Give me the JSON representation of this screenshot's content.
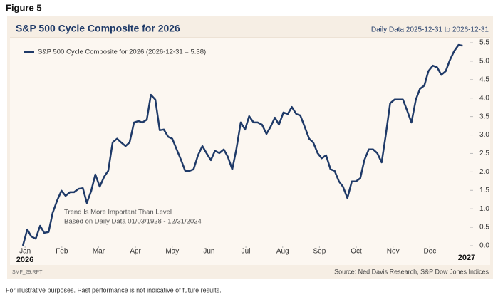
{
  "figure_label": "Figure 5",
  "chart_data": {
    "type": "line",
    "title": "S&P 500 Cycle Composite for 2026",
    "subtitle": "Daily Data 2025-12-31 to 2026-12-31",
    "annotations": [
      "Trend Is More Important Than Level",
      "Based on Daily Data 01/03/1928 - 12/31/2024"
    ],
    "year_start_label": "2026",
    "year_end_label": "2027",
    "report_id": "SMF_29.RPT",
    "source": "Source: Ned Davis Research, S&P Dow Jones Indices",
    "legend": "top-left",
    "grid": false,
    "xlim": [
      -0.1,
      12
    ],
    "xticks": [
      {
        "value": 0,
        "label": "Jan"
      },
      {
        "value": 1,
        "label": "Feb"
      },
      {
        "value": 2,
        "label": "Mar"
      },
      {
        "value": 3,
        "label": "Apr"
      },
      {
        "value": 4,
        "label": "May"
      },
      {
        "value": 5,
        "label": "Jun"
      },
      {
        "value": 6,
        "label": "Jul"
      },
      {
        "value": 7,
        "label": "Aug"
      },
      {
        "value": 8,
        "label": "Sep"
      },
      {
        "value": 9,
        "label": "Oct"
      },
      {
        "value": 10,
        "label": "Nov"
      },
      {
        "value": 11,
        "label": "Dec"
      }
    ],
    "ylim": [
      0,
      5.5
    ],
    "yticks": [
      {
        "value": 0,
        "label": "0.0"
      },
      0.5,
      {
        "value": 1,
        "label": "1.0"
      },
      1.5,
      {
        "value": 2,
        "label": "2.0"
      },
      2.5,
      {
        "value": 3,
        "label": "3.0"
      },
      3.5,
      {
        "value": 4,
        "label": "4.0"
      },
      4.5,
      {
        "value": 5,
        "label": "5.0"
      },
      5.5
    ],
    "x": [
      -0.06,
      0.06,
      0.17,
      0.29,
      0.41,
      0.52,
      0.64,
      0.75,
      0.87,
      0.99,
      1.1,
      1.22,
      1.33,
      1.45,
      1.57,
      1.68,
      1.8,
      1.91,
      2.03,
      2.15,
      2.26,
      2.38,
      2.5,
      2.61,
      2.73,
      2.84,
      2.96,
      3.08,
      3.19,
      3.31,
      3.42,
      3.54,
      3.66,
      3.77,
      3.89,
      4.0,
      4.12,
      4.24,
      4.35,
      4.47,
      4.58,
      4.7,
      4.82,
      4.93,
      5.05,
      5.16,
      5.28,
      5.4,
      5.51,
      5.63,
      5.74,
      5.86,
      5.98,
      6.09,
      6.21,
      6.32,
      6.44,
      6.56,
      6.67,
      6.79,
      6.9,
      7.02,
      7.14,
      7.25,
      7.37,
      7.48,
      7.6,
      7.72,
      7.83,
      7.95,
      8.06,
      8.18,
      8.3,
      8.41,
      8.53,
      8.64,
      8.76,
      8.88,
      8.99,
      9.11,
      9.22,
      9.34,
      9.46,
      9.57,
      9.69,
      9.8,
      9.92,
      10.04,
      10.15,
      10.27,
      10.38,
      10.5,
      10.62,
      10.73,
      10.85,
      10.96,
      11.08,
      11.2,
      11.31,
      11.43,
      11.54,
      11.66,
      11.78,
      11.89
    ],
    "series": [
      {
        "name": "S&P 500 Cycle Composite for 2026 (2026-12-31 = 5.38)",
        "color": "#1f3a68",
        "values": [
          0.0,
          0.44,
          0.25,
          0.19,
          0.54,
          0.35,
          0.37,
          0.89,
          1.22,
          1.49,
          1.35,
          1.45,
          1.45,
          1.54,
          1.56,
          1.16,
          1.49,
          1.93,
          1.6,
          1.87,
          2.03,
          2.8,
          2.9,
          2.8,
          2.7,
          2.8,
          3.34,
          3.38,
          3.34,
          3.42,
          4.09,
          3.96,
          3.13,
          3.15,
          2.95,
          2.9,
          2.61,
          2.32,
          2.03,
          2.03,
          2.07,
          2.45,
          2.7,
          2.51,
          2.32,
          2.57,
          2.51,
          2.61,
          2.41,
          2.07,
          2.61,
          3.34,
          3.15,
          3.51,
          3.34,
          3.34,
          3.28,
          3.03,
          3.22,
          3.47,
          3.28,
          3.61,
          3.57,
          3.76,
          3.57,
          3.53,
          3.22,
          2.9,
          2.8,
          2.51,
          2.37,
          2.45,
          2.07,
          2.03,
          1.74,
          1.6,
          1.29,
          1.74,
          1.74,
          1.83,
          2.32,
          2.61,
          2.61,
          2.51,
          2.26,
          2.99,
          3.86,
          3.96,
          3.96,
          3.96,
          3.67,
          3.34,
          3.96,
          4.25,
          4.34,
          4.73,
          4.88,
          4.83,
          4.63,
          4.73,
          5.02,
          5.27,
          5.44,
          5.42
        ]
      }
    ],
    "footnote": "For illustrative purposes. Past performance is not indicative of future results."
  }
}
